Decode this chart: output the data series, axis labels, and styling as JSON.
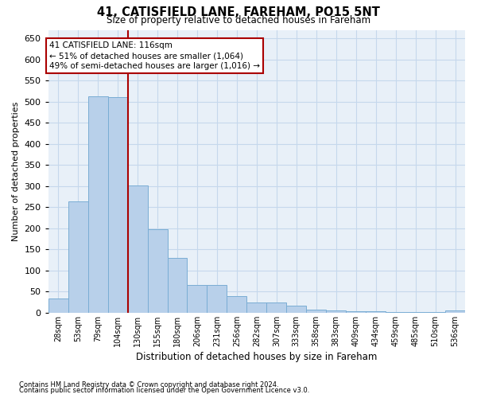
{
  "title_line1": "41, CATISFIELD LANE, FAREHAM, PO15 5NT",
  "title_line2": "Size of property relative to detached houses in Fareham",
  "xlabel": "Distribution of detached houses by size in Fareham",
  "ylabel": "Number of detached properties",
  "footnote1": "Contains HM Land Registry data © Crown copyright and database right 2024.",
  "footnote2": "Contains public sector information licensed under the Open Government Licence v3.0.",
  "categories": [
    "28sqm",
    "53sqm",
    "79sqm",
    "104sqm",
    "130sqm",
    "155sqm",
    "180sqm",
    "206sqm",
    "231sqm",
    "256sqm",
    "282sqm",
    "307sqm",
    "333sqm",
    "358sqm",
    "383sqm",
    "409sqm",
    "434sqm",
    "459sqm",
    "485sqm",
    "510sqm",
    "536sqm"
  ],
  "values": [
    33,
    263,
    513,
    510,
    302,
    197,
    130,
    66,
    65,
    39,
    25,
    25,
    16,
    8,
    5,
    4,
    3,
    1,
    1,
    1,
    5
  ],
  "bar_color": "#b8d0ea",
  "bar_edge_color": "#7aadd4",
  "grid_color": "#c5d8ec",
  "background_color": "#e8f0f8",
  "property_line_x": 3.5,
  "annotation_text": "41 CATISFIELD LANE: 116sqm\n← 51% of detached houses are smaller (1,064)\n49% of semi-detached houses are larger (1,016) →",
  "annotation_box_color": "#aa0000",
  "ylim": [
    0,
    670
  ],
  "yticks": [
    0,
    50,
    100,
    150,
    200,
    250,
    300,
    350,
    400,
    450,
    500,
    550,
    600,
    650
  ]
}
